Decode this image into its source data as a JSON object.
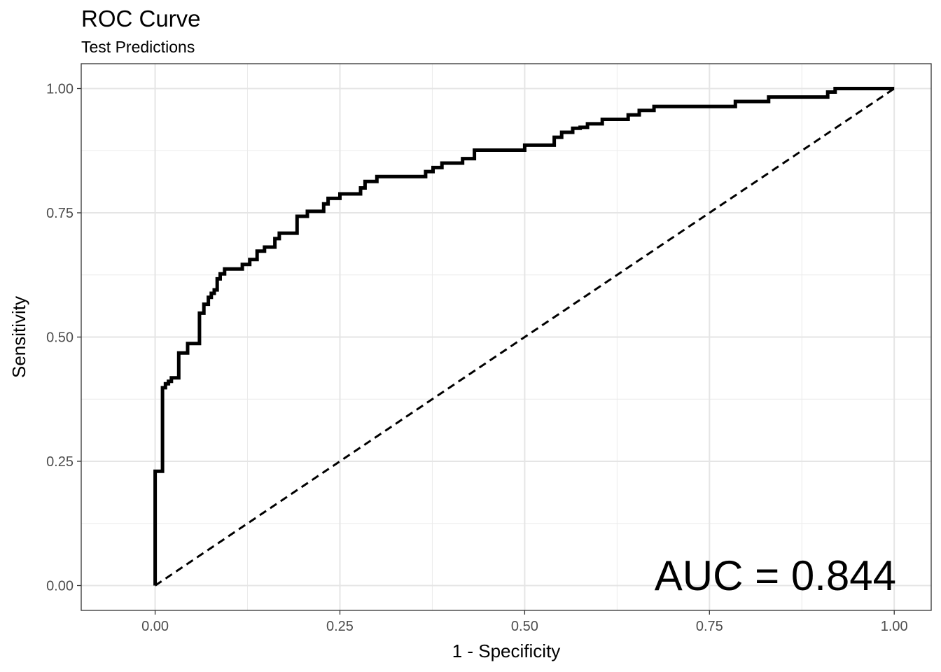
{
  "chart_data": {
    "type": "line",
    "title": "ROC Curve",
    "subtitle": "Test Predictions",
    "xlabel": "1 - Specificity",
    "ylabel": "Sensitivity",
    "xlim": [
      -0.1,
      1.05
    ],
    "ylim": [
      -0.05,
      1.05
    ],
    "xticks": [
      "0.00",
      "0.25",
      "0.50",
      "0.75",
      "1.00"
    ],
    "yticks": [
      "0.00",
      "0.25",
      "0.50",
      "0.75",
      "1.00"
    ],
    "grid": true,
    "annotation": "AUC = 0.844",
    "series": [
      {
        "style": "solid",
        "color": "#000000",
        "x": [
          0,
          0,
          0.01,
          0.01,
          0.014,
          0.014,
          0.018,
          0.018,
          0.022,
          0.022,
          0.032,
          0.032,
          0.044,
          0.044,
          0.06,
          0.06,
          0.066,
          0.066,
          0.072,
          0.072,
          0.076,
          0.076,
          0.08,
          0.08,
          0.084,
          0.084,
          0.088,
          0.088,
          0.094,
          0.094,
          0.118,
          0.118,
          0.128,
          0.128,
          0.138,
          0.138,
          0.148,
          0.148,
          0.162,
          0.162,
          0.168,
          0.168,
          0.192,
          0.192,
          0.206,
          0.206,
          0.228,
          0.228,
          0.234,
          0.234,
          0.25,
          0.25,
          0.278,
          0.278,
          0.284,
          0.284,
          0.3,
          0.3,
          0.366,
          0.366,
          0.376,
          0.376,
          0.388,
          0.388,
          0.416,
          0.416,
          0.432,
          0.432,
          0.5,
          0.5,
          0.54,
          0.54,
          0.55,
          0.55,
          0.565,
          0.565,
          0.575,
          0.575,
          0.585,
          0.585,
          0.605,
          0.605,
          0.64,
          0.64,
          0.655,
          0.655,
          0.675,
          0.675,
          0.785,
          0.785,
          0.83,
          0.83,
          0.91,
          0.91,
          0.92,
          0.92,
          1
        ],
        "y": [
          0,
          0.23,
          0.23,
          0.398,
          0.398,
          0.406,
          0.406,
          0.411,
          0.411,
          0.418,
          0.418,
          0.468,
          0.468,
          0.487,
          0.487,
          0.548,
          0.548,
          0.566,
          0.566,
          0.58,
          0.58,
          0.588,
          0.588,
          0.595,
          0.595,
          0.617,
          0.617,
          0.627,
          0.627,
          0.637,
          0.637,
          0.646,
          0.646,
          0.656,
          0.656,
          0.673,
          0.673,
          0.681,
          0.681,
          0.698,
          0.698,
          0.709,
          0.709,
          0.743,
          0.743,
          0.753,
          0.753,
          0.768,
          0.768,
          0.779,
          0.779,
          0.788,
          0.788,
          0.8,
          0.8,
          0.813,
          0.813,
          0.823,
          0.823,
          0.833,
          0.833,
          0.841,
          0.841,
          0.85,
          0.85,
          0.859,
          0.859,
          0.876,
          0.876,
          0.886,
          0.886,
          0.902,
          0.902,
          0.912,
          0.912,
          0.92,
          0.92,
          0.922,
          0.922,
          0.929,
          0.929,
          0.938,
          0.938,
          0.947,
          0.947,
          0.956,
          0.956,
          0.964,
          0.964,
          0.974,
          0.974,
          0.983,
          0.983,
          0.993,
          0.993,
          1,
          1
        ]
      },
      {
        "style": "dashed",
        "color": "#000000",
        "x": [
          0,
          1
        ],
        "y": [
          0,
          1
        ]
      }
    ]
  }
}
